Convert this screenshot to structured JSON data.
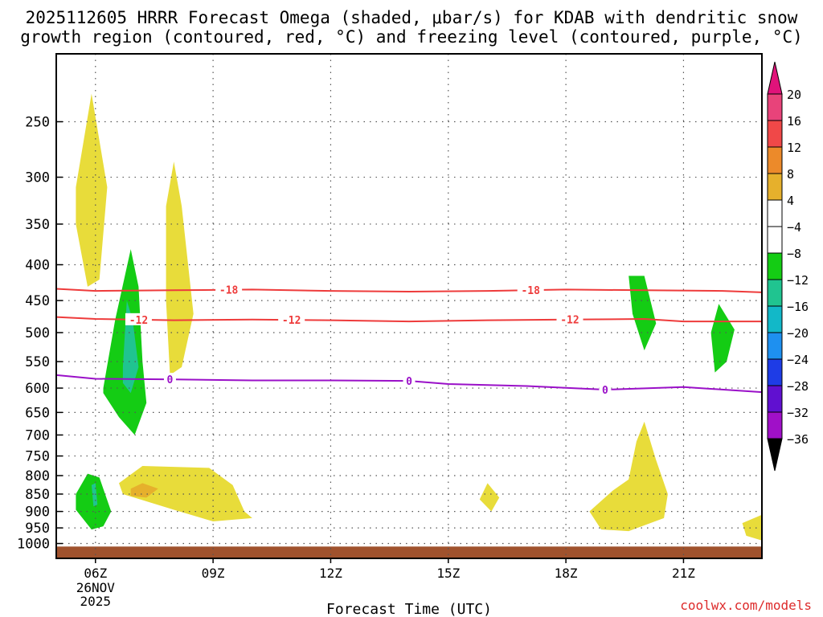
{
  "title": {
    "line1": "2025112605 HRRR Forecast Omega (shaded, μbar/s) for KDAB with dendritic snow",
    "line2": "growth region (contoured, red, °C) and freezing level (contoured, purple, °C)"
  },
  "credit": "coolwx.com/models",
  "chart_data": {
    "type": "contour",
    "xlabel": "Forecast Time (UTC)",
    "y_axis": {
      "label": "",
      "ticks": [
        250,
        300,
        350,
        400,
        450,
        500,
        550,
        600,
        650,
        700,
        750,
        800,
        850,
        900,
        950,
        1000
      ],
      "tick_labels": [
        "250",
        "300",
        "350",
        "400",
        "450",
        "500",
        "550",
        "600",
        "650",
        "700",
        "750",
        "800",
        "850",
        "900",
        "950",
        "1000"
      ],
      "range": [
        200,
        1050
      ],
      "scale": "log-pressure",
      "reversed": true
    },
    "x_axis": {
      "range_hours": [
        5,
        23
      ],
      "ticks": [
        {
          "hour": 6,
          "label": "06Z",
          "sub": [
            "26NOV",
            "2025"
          ]
        },
        {
          "hour": 9,
          "label": "09Z"
        },
        {
          "hour": 12,
          "label": "12Z"
        },
        {
          "hour": 15,
          "label": "15Z"
        },
        {
          "hour": 18,
          "label": "18Z"
        },
        {
          "hour": 21,
          "label": "21Z"
        }
      ]
    },
    "grid": true,
    "colorbar": {
      "unit": "μbar/s",
      "levels": [
        {
          "label": "20",
          "color": "#e8437a"
        },
        {
          "label": "16",
          "color": "#f04848"
        },
        {
          "label": "12",
          "color": "#ec8a2a"
        },
        {
          "label": "8",
          "color": "#e6b02c"
        },
        {
          "label": "4",
          "color": "#e8dc3a"
        },
        {
          "label": "−4",
          "color": "#ffffff"
        },
        {
          "label": "−8",
          "color": "#14cc14"
        },
        {
          "label": "−12",
          "color": "#20c490"
        },
        {
          "label": "−16",
          "color": "#12b8c8"
        },
        {
          "label": "−20",
          "color": "#1e90f0"
        },
        {
          "label": "−24",
          "color": "#1e3ce6"
        },
        {
          "label": "−28",
          "color": "#6010d0"
        },
        {
          "label": "−32",
          "color": "#a010c8"
        },
        {
          "label": "−36",
          "color": "#a8a8a8"
        }
      ],
      "top_cap_color": "#e0137a",
      "bottom_cap_color": "#000000"
    },
    "contours": [
      {
        "name": "-18",
        "color": "#ee3b3b",
        "points": [
          [
            5,
            433
          ],
          [
            6,
            436
          ],
          [
            8,
            435
          ],
          [
            10,
            434
          ],
          [
            12,
            436
          ],
          [
            14,
            437
          ],
          [
            16,
            436
          ],
          [
            18,
            434
          ],
          [
            20,
            435
          ],
          [
            22,
            436
          ],
          [
            23,
            438
          ]
        ],
        "labels": [
          {
            "text": "-18",
            "hour": 9.4
          },
          {
            "text": "-18",
            "hour": 17.1
          }
        ]
      },
      {
        "name": "-12",
        "color": "#ee3b3b",
        "points": [
          [
            5,
            475
          ],
          [
            6,
            478
          ],
          [
            8,
            480
          ],
          [
            10,
            479
          ],
          [
            12,
            480
          ],
          [
            14,
            482
          ],
          [
            16,
            480
          ],
          [
            18,
            479
          ],
          [
            20,
            478
          ],
          [
            21,
            482
          ],
          [
            23,
            482
          ]
        ],
        "labels": [
          {
            "text": "-12",
            "hour": 7.1
          },
          {
            "text": "-12",
            "hour": 11.0
          },
          {
            "text": "-12",
            "hour": 18.1
          }
        ]
      },
      {
        "name": "0",
        "color": "#9a10c8",
        "points": [
          [
            5,
            575
          ],
          [
            6,
            582
          ],
          [
            8,
            583
          ],
          [
            10,
            585
          ],
          [
            12,
            585
          ],
          [
            14,
            586
          ],
          [
            15,
            592
          ],
          [
            17,
            596
          ],
          [
            19,
            603
          ],
          [
            21,
            598
          ],
          [
            23,
            608
          ]
        ],
        "labels": [
          {
            "text": "0",
            "hour": 7.9
          },
          {
            "text": "0",
            "hour": 14.0
          },
          {
            "text": "0",
            "hour": 19.0
          }
        ]
      }
    ],
    "omega_regions": [
      {
        "value": 4,
        "points": [
          [
            5.5,
            310
          ],
          [
            5.9,
            228
          ],
          [
            6.3,
            310
          ],
          [
            6.1,
            420
          ],
          [
            5.8,
            430
          ],
          [
            5.5,
            350
          ]
        ]
      },
      {
        "value": 4,
        "points": [
          [
            7.8,
            330
          ],
          [
            8.0,
            285
          ],
          [
            8.2,
            330
          ],
          [
            8.5,
            470
          ],
          [
            8.2,
            560
          ],
          [
            7.9,
            575
          ],
          [
            7.8,
            450
          ]
        ]
      },
      {
        "value": -4,
        "points": [
          [
            6.2,
            600
          ],
          [
            6.5,
            480
          ],
          [
            6.9,
            380
          ],
          [
            7.1,
            430
          ],
          [
            7.2,
            550
          ],
          [
            7.3,
            630
          ],
          [
            7.0,
            700
          ],
          [
            6.6,
            660
          ],
          [
            6.2,
            610
          ]
        ]
      },
      {
        "value": -8,
        "points": [
          [
            6.7,
            560
          ],
          [
            6.8,
            450
          ],
          [
            6.95,
            480
          ],
          [
            7.1,
            560
          ],
          [
            6.9,
            610
          ],
          [
            6.7,
            590
          ]
        ]
      },
      {
        "value": 4,
        "points": [
          [
            6.6,
            820
          ],
          [
            7.2,
            775
          ],
          [
            8.9,
            780
          ],
          [
            9.5,
            825
          ],
          [
            9.8,
            900
          ],
          [
            10.0,
            920
          ],
          [
            9.0,
            930
          ],
          [
            8.0,
            895
          ],
          [
            6.7,
            850
          ]
        ]
      },
      {
        "value": 8,
        "points": [
          [
            6.9,
            835
          ],
          [
            7.2,
            820
          ],
          [
            7.6,
            835
          ],
          [
            7.3,
            860
          ],
          [
            6.9,
            855
          ]
        ]
      },
      {
        "value": -4,
        "points": [
          [
            5.5,
            850
          ],
          [
            5.8,
            795
          ],
          [
            6.1,
            805
          ],
          [
            6.4,
            900
          ],
          [
            6.2,
            945
          ],
          [
            5.9,
            955
          ],
          [
            5.5,
            895
          ]
        ]
      },
      {
        "value": -8,
        "points": [
          [
            5.9,
            825
          ],
          [
            6.0,
            820
          ],
          [
            6.05,
            880
          ],
          [
            5.95,
            885
          ]
        ]
      },
      {
        "value": 4,
        "points": [
          [
            15.8,
            865
          ],
          [
            16.0,
            820
          ],
          [
            16.3,
            860
          ],
          [
            16.1,
            900
          ]
        ]
      },
      {
        "value": -4,
        "points": [
          [
            19.6,
            415
          ],
          [
            20.0,
            415
          ],
          [
            20.3,
            485
          ],
          [
            20.0,
            530
          ],
          [
            19.7,
            470
          ]
        ]
      },
      {
        "value": -4,
        "points": [
          [
            21.7,
            500
          ],
          [
            21.9,
            455
          ],
          [
            22.3,
            495
          ],
          [
            22.1,
            550
          ],
          [
            21.8,
            570
          ]
        ]
      },
      {
        "value": 4,
        "points": [
          [
            18.6,
            900
          ],
          [
            19.2,
            840
          ],
          [
            19.6,
            810
          ],
          [
            19.8,
            715
          ],
          [
            20.0,
            670
          ],
          [
            20.3,
            760
          ],
          [
            20.6,
            850
          ],
          [
            20.5,
            920
          ],
          [
            19.6,
            960
          ],
          [
            18.9,
            955
          ]
        ]
      },
      {
        "value": 4,
        "points": [
          [
            22.5,
            935
          ],
          [
            23.0,
            910
          ],
          [
            23.0,
            990
          ],
          [
            22.6,
            975
          ]
        ]
      }
    ],
    "terrain": {
      "from_pressure": 1010,
      "color": "#a0522d"
    }
  }
}
